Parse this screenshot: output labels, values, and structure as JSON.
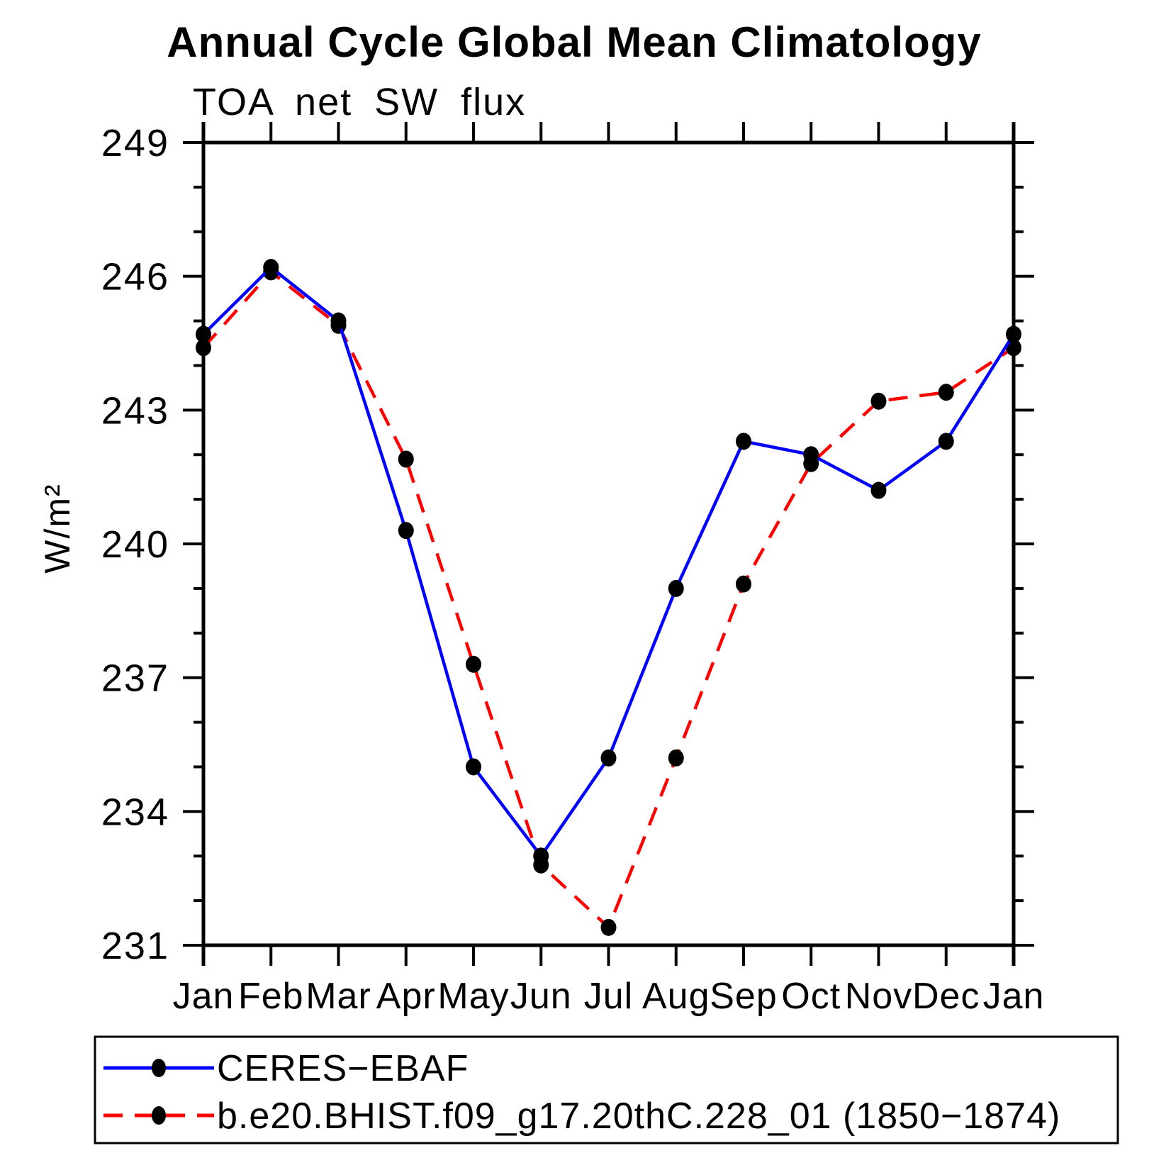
{
  "chart_data": {
    "type": "line",
    "title": "Annual Cycle Global Mean Climatology",
    "subtitle": "TOA net SW flux",
    "xlabel": "",
    "ylabel": "W/m²",
    "categories": [
      "Jan",
      "Feb",
      "Mar",
      "Apr",
      "May",
      "Jun",
      "Jul",
      "Aug",
      "Sep",
      "Oct",
      "Nov",
      "Dec",
      "Jan"
    ],
    "ylim": [
      231,
      249
    ],
    "yticks_major": [
      231,
      234,
      237,
      240,
      243,
      246,
      249
    ],
    "ytick_minor_step": 1,
    "grid": false,
    "legend_position": "bottom",
    "marker": "filled-circle",
    "marker_color": "#000000",
    "series": [
      {
        "name": "CERES−EBAF",
        "color": "#0000ff",
        "style": "solid",
        "values": [
          244.7,
          246.2,
          245.0,
          240.3,
          235.0,
          233.0,
          235.2,
          239.0,
          242.3,
          242.0,
          241.2,
          242.3,
          244.7
        ]
      },
      {
        "name": "b.e20.BHIST.f09_g17.20thC.228_01 (1850−1874)",
        "color": "#ff0000",
        "style": "dashed",
        "values": [
          244.4,
          246.1,
          244.9,
          241.9,
          237.3,
          232.8,
          231.4,
          235.2,
          239.1,
          241.8,
          243.2,
          243.4,
          244.4
        ]
      }
    ]
  }
}
